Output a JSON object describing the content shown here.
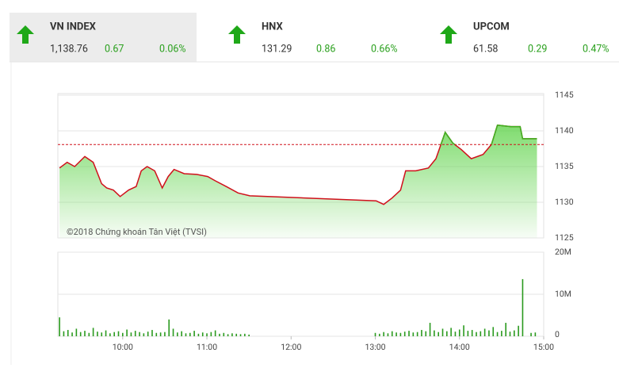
{
  "indices": [
    {
      "name": "VN INDEX",
      "value": "1,138.76",
      "change": "0.67",
      "percent": "0.06%"
    },
    {
      "name": "HNX",
      "value": "131.29",
      "change": "0.86",
      "percent": "0.66%"
    },
    {
      "name": "UPCOM",
      "value": "61.58",
      "change": "0.29",
      "percent": "0.47%"
    }
  ],
  "chart_data": [
    {
      "type": "line",
      "annotation": "©2018 Chứng khoán Tân Việt (TVSI)",
      "x": [
        9.25,
        9.34,
        9.43,
        9.55,
        9.65,
        9.75,
        9.81,
        9.89,
        9.97,
        10.07,
        10.16,
        10.22,
        10.29,
        10.38,
        10.47,
        10.54,
        10.61,
        10.73,
        10.88,
        11.01,
        11.1,
        11.23,
        11.37,
        11.51,
        13.01,
        13.1,
        13.2,
        13.3,
        13.36,
        13.48,
        13.63,
        13.72,
        13.83,
        13.92,
        14.02,
        14.14,
        14.28,
        14.38,
        14.45,
        14.61,
        14.72,
        14.75,
        14.92
      ],
      "values": [
        1134.8,
        1135.6,
        1135.0,
        1136.4,
        1135.6,
        1132.6,
        1132.0,
        1131.7,
        1130.8,
        1131.7,
        1132.2,
        1134.4,
        1135.0,
        1134.4,
        1132.0,
        1133.6,
        1134.6,
        1134.0,
        1133.9,
        1133.6,
        1133.0,
        1132.2,
        1131.3,
        1130.9,
        1130.2,
        1129.7,
        1130.6,
        1131.7,
        1134.4,
        1134.4,
        1134.8,
        1136.1,
        1139.8,
        1138.3,
        1137.4,
        1136.1,
        1136.7,
        1138.1,
        1140.8,
        1140.6,
        1140.6,
        1138.9,
        1138.9
      ],
      "reference": 1138.09,
      "color_below": "#d0101b",
      "color_above": "#3cb521",
      "fill_color": "#5fd34a",
      "xlim": [
        9.23,
        15
      ],
      "ylim": [
        1125,
        1145
      ],
      "yticks": [
        1125,
        1130,
        1135,
        1140,
        1145
      ],
      "grid": true
    },
    {
      "type": "bar",
      "x": [
        9.25,
        9.3,
        9.35,
        9.4,
        9.45,
        9.5,
        9.55,
        9.6,
        9.65,
        9.7,
        9.75,
        9.8,
        9.85,
        9.9,
        9.95,
        10,
        10.05,
        10.1,
        10.15,
        10.2,
        10.25,
        10.3,
        10.35,
        10.4,
        10.45,
        10.5,
        10.55,
        10.6,
        10.65,
        10.7,
        10.75,
        10.8,
        10.85,
        10.9,
        10.95,
        11,
        11.05,
        11.1,
        11.15,
        11.2,
        11.25,
        11.3,
        11.35,
        11.4,
        11.45,
        11.5,
        13,
        13.05,
        13.1,
        13.15,
        13.2,
        13.25,
        13.3,
        13.35,
        13.4,
        13.45,
        13.5,
        13.55,
        13.6,
        13.65,
        13.7,
        13.75,
        13.8,
        13.85,
        13.9,
        13.95,
        14,
        14.05,
        14.1,
        14.15,
        14.2,
        14.25,
        14.3,
        14.35,
        14.4,
        14.45,
        14.5,
        14.55,
        14.6,
        14.65,
        14.7,
        14.75,
        14.85,
        14.9
      ],
      "values": [
        4.5,
        1.2,
        1.5,
        0.9,
        1.8,
        1.0,
        1.3,
        0.8,
        2.0,
        1.1,
        0.9,
        1.4,
        0.7,
        1.0,
        1.2,
        0.8,
        1.6,
        0.9,
        1.3,
        1.0,
        0.7,
        1.1,
        1.5,
        0.8,
        0.9,
        1.0,
        4.0,
        1.8,
        0.9,
        1.2,
        0.7,
        0.8,
        1.3,
        0.6,
        0.9,
        0.7,
        1.0,
        1.4,
        0.6,
        0.8,
        0.5,
        0.7,
        0.6,
        0.5,
        0.6,
        0.4,
        0.8,
        0.6,
        1.0,
        0.7,
        1.2,
        0.9,
        0.8,
        1.1,
        1.3,
        0.9,
        1.0,
        1.5,
        1.2,
        3.2,
        1.4,
        1.0,
        1.8,
        1.2,
        2.0,
        1.1,
        1.6,
        2.6,
        1.3,
        1.5,
        1.0,
        1.2,
        1.8,
        1.4,
        2.2,
        1.0,
        1.3,
        3.2,
        1.1,
        1.4,
        2.5,
        13.6,
        0.8,
        0.9
      ],
      "color": "#2a9a1e",
      "xlim": [
        9.23,
        15
      ],
      "ylim": [
        0,
        20
      ],
      "yticks": [
        0,
        {
          "value": 10,
          "label": "10M"
        },
        {
          "value": 20,
          "label": "20M"
        }
      ],
      "xticks": [
        {
          "value": 10,
          "label": "10:00"
        },
        {
          "value": 11,
          "label": "11:00"
        },
        {
          "value": 12,
          "label": "12:00"
        },
        {
          "value": 13,
          "label": "13:00"
        },
        {
          "value": 14,
          "label": "14:00"
        },
        {
          "value": 15,
          "label": "15:00"
        }
      ],
      "grid": true
    }
  ]
}
